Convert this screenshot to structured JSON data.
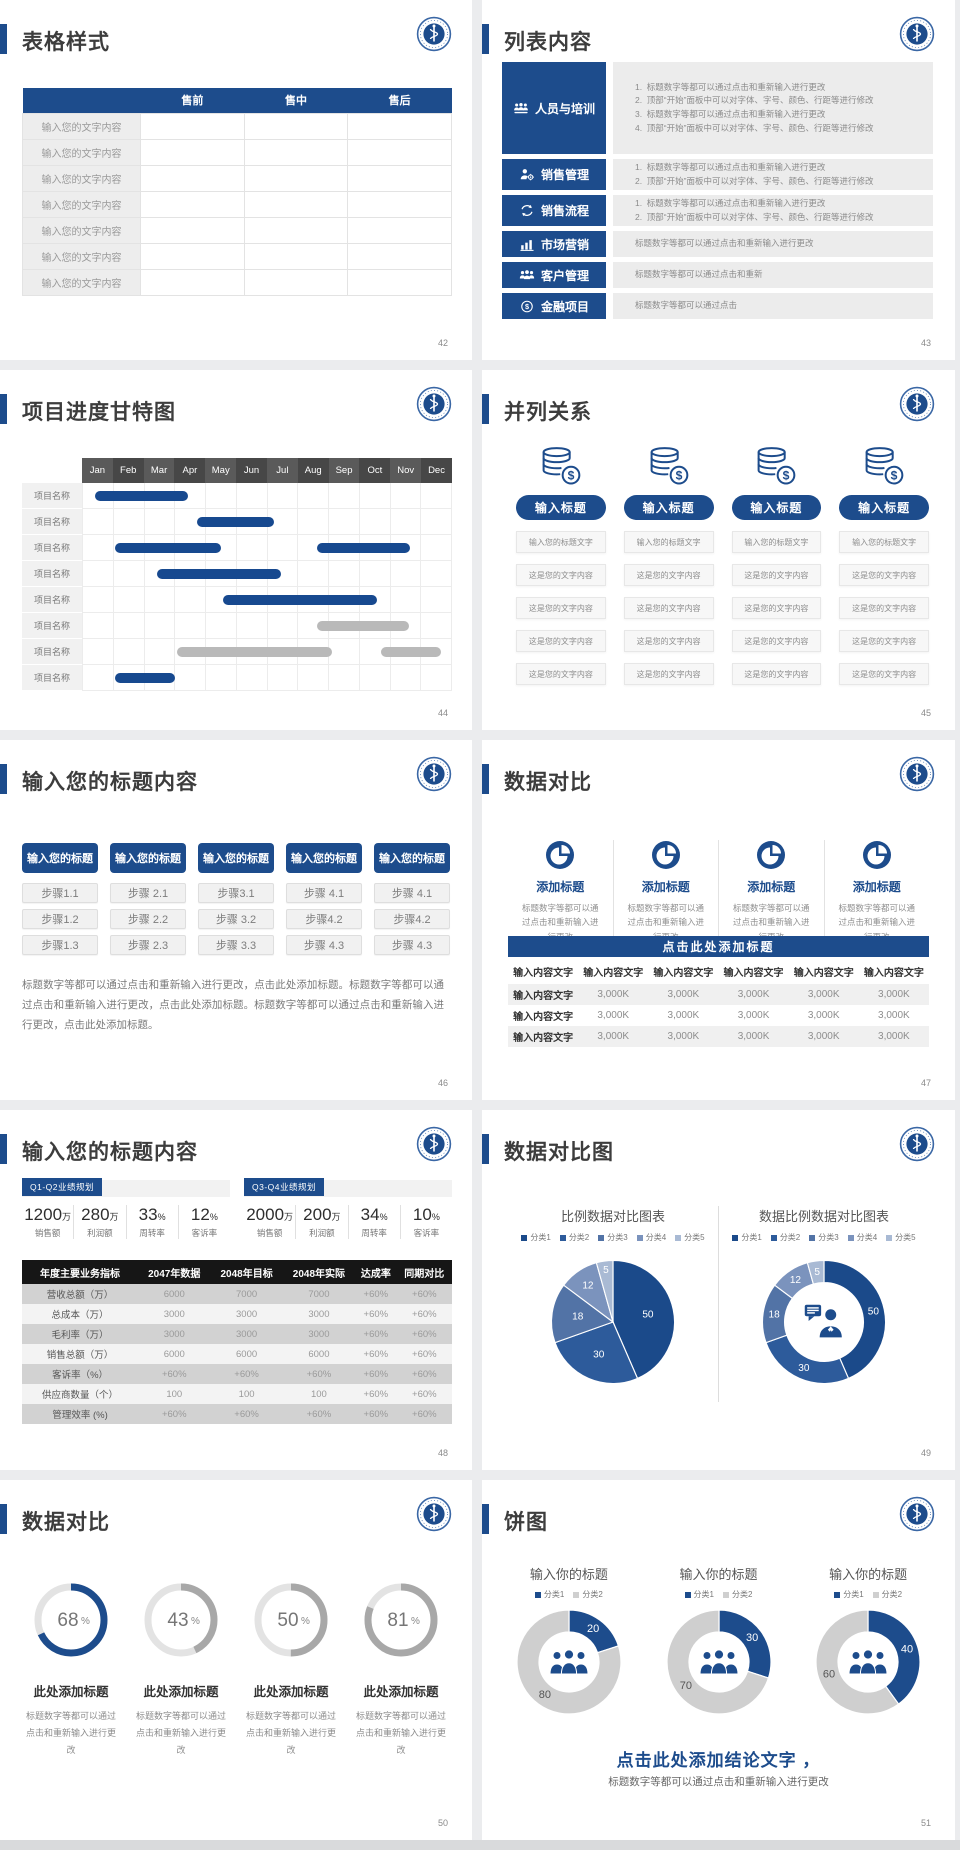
{
  "colors": {
    "primary": "#1d4c8c",
    "gantt_blue": "#17498f",
    "gantt_gray": "#b9b9b9",
    "pie_palette": [
      "#1b4a8a",
      "#2d5b9b",
      "#5273a6",
      "#7b93bd",
      "#a9bad4"
    ],
    "donut_gray": "#cfcfcf",
    "gauge_track": "#e3e3e3",
    "gauge_gray": "#a8a8a8"
  },
  "slides": {
    "s1": {
      "title": "表格样式",
      "page": "42",
      "table": {
        "headers": [
          "",
          "售前",
          "售中",
          "售后"
        ],
        "rows": [
          "输入您的文字内容",
          "输入您的文字内容",
          "输入您的文字内容",
          "输入您的文字内容",
          "输入您的文字内容",
          "输入您的文字内容",
          "输入您的文字内容"
        ]
      }
    },
    "s2": {
      "title": "列表内容",
      "page": "43",
      "items": [
        {
          "icon": "team-icon",
          "label": "人员与培训",
          "numbered": true,
          "lines": [
            "标题数字等都可以通过点击和重新输入进行更改",
            "顶部“开始”面板中可以对字体、字号、颜色、行距等进行修改",
            "标题数字等都可以通过点击和重新输入进行更改",
            "顶部“开始”面板中可以对字体、字号、颜色、行距等进行修改"
          ]
        },
        {
          "icon": "sales-manage-icon",
          "label": "销售管理",
          "numbered": true,
          "lines": [
            "标题数字等都可以通过点击和重新输入进行更改",
            "顶部“开始”面板中可以对字体、字号、颜色、行距等进行修改"
          ]
        },
        {
          "icon": "sales-flow-icon",
          "label": "销售流程",
          "numbered": true,
          "lines": [
            "标题数字等都可以通过点击和重新输入进行更改",
            "顶部“开始”面板中可以对字体、字号、颜色、行距等进行修改"
          ]
        },
        {
          "icon": "marketing-icon",
          "label": "市场营销",
          "numbered": false,
          "lines": [
            "标题数字等都可以通过点击和重新输入进行更改"
          ]
        },
        {
          "icon": "customer-icon",
          "label": "客户管理",
          "numbered": false,
          "lines": [
            "标题数字等都可以通过点击和重新"
          ]
        },
        {
          "icon": "finance-icon",
          "label": "金融项目",
          "numbered": false,
          "lines": [
            "标题数字等都可以通过点击"
          ]
        }
      ]
    },
    "s3": {
      "title": "项目进度甘特图",
      "page": "44",
      "gantt": {
        "months": [
          "Jan",
          "Feb",
          "Mar",
          "Apr",
          "May",
          "Jun",
          "Jul",
          "Aug",
          "Sep",
          "Oct",
          "Nov",
          "Dec"
        ],
        "row_label": "项目名称",
        "rows": 8,
        "bars": [
          {
            "row": 0,
            "start": 0.4,
            "end": 3.4,
            "color": "blue"
          },
          {
            "row": 1,
            "start": 3.7,
            "end": 6.2,
            "color": "blue"
          },
          {
            "row": 2,
            "start": 1.05,
            "end": 4.5,
            "color": "blue"
          },
          {
            "row": 2,
            "start": 7.6,
            "end": 10.65,
            "color": "blue"
          },
          {
            "row": 3,
            "start": 2.4,
            "end": 6.45,
            "color": "blue"
          },
          {
            "row": 4,
            "start": 4.55,
            "end": 9.55,
            "color": "blue"
          },
          {
            "row": 5,
            "start": 7.6,
            "end": 10.6,
            "color": "gray"
          },
          {
            "row": 6,
            "start": 3.05,
            "end": 8.1,
            "color": "gray"
          },
          {
            "row": 6,
            "start": 9.7,
            "end": 11.65,
            "color": "gray"
          },
          {
            "row": 7,
            "start": 1.05,
            "end": 3.0,
            "color": "blue"
          }
        ]
      }
    },
    "s4": {
      "title": "并列关系",
      "page": "45",
      "columns": [
        {
          "pill": "输入标题",
          "boxes": [
            "输入您的标题文字",
            "这是您的文字内容",
            "这是您的文字内容",
            "这是您的文字内容",
            "这是您的文字内容"
          ]
        },
        {
          "pill": "输入标题",
          "boxes": [
            "输入您的标题文字",
            "这是您的文字内容",
            "这是您的文字内容",
            "这是您的文字内容",
            "这是您的文字内容"
          ]
        },
        {
          "pill": "输入标题",
          "boxes": [
            "输入您的标题文字",
            "这是您的文字内容",
            "这是您的文字内容",
            "这是您的文字内容",
            "这是您的文字内容"
          ]
        },
        {
          "pill": "输入标题",
          "boxes": [
            "输入您的标题文字",
            "这是您的文字内容",
            "这是您的文字内容",
            "这是您的文字内容",
            "这是您的文字内容"
          ]
        }
      ]
    },
    "s5": {
      "title": "输入您的标题内容",
      "page": "46",
      "header_label": "输入您的标题",
      "step_columns": [
        [
          "步骤1.1",
          "步骤1.2",
          "步骤1.3"
        ],
        [
          "步骤 2.1",
          "步骤 2.2",
          "步骤 2.3"
        ],
        [
          "步骤3.1",
          "步骤 3.2",
          "步骤 3.3"
        ],
        [
          "步骤 4.1",
          "步骤4.2",
          "步骤 4.3"
        ],
        [
          "步骤 4.1",
          "步骤4.2",
          "步骤 4.3"
        ]
      ],
      "paragraph": "标题数字等都可以通过点击和重新输入进行更改，点击此处添加标题。标题数字等都可以通过点击和重新输入进行更改，点击此处添加标题。标题数字等都可以通过点击和重新输入进行更改，点击此处添加标题。"
    },
    "s6": {
      "title": "数据对比",
      "page": "47",
      "features": [
        {
          "heading": "添加标题",
          "text": "标题数字等都可以通过点击和重新输入进行更改"
        },
        {
          "heading": "添加标题",
          "text": "标题数字等都可以通过点击和重新输入进行更改"
        },
        {
          "heading": "添加标题",
          "text": "标题数字等都可以通过点击和重新输入进行更改"
        },
        {
          "heading": "添加标题",
          "text": "标题数字等都可以通过点击和重新输入进行更改"
        }
      ],
      "banner": "点击此处添加标题",
      "table": {
        "headers": [
          "输入内容文字",
          "输入内容文字",
          "输入内容文字",
          "输入内容文字",
          "输入内容文字",
          "输入内容文字"
        ],
        "rows": [
          [
            "输入内容文字",
            "3,000K",
            "3,000K",
            "3,000K",
            "3,000K",
            "3,000K"
          ],
          [
            "输入内容文字",
            "3,000K",
            "3,000K",
            "3,000K",
            "3,000K",
            "3,000K"
          ],
          [
            "输入内容文字",
            "3,000K",
            "3,000K",
            "3,000K",
            "3,000K",
            "3,000K"
          ]
        ]
      }
    },
    "s7": {
      "title": "输入您的标题内容",
      "page": "48",
      "groups": [
        {
          "badge": "Q1-Q2业绩规划",
          "stats": [
            {
              "value": "1200",
              "unit": "万",
              "label": "销售额"
            },
            {
              "value": "280",
              "unit": "万",
              "label": "利润额"
            },
            {
              "value": "33",
              "unit": "%",
              "label": "周转率"
            },
            {
              "value": "12",
              "unit": "%",
              "label": "客诉率"
            }
          ]
        },
        {
          "badge": "Q3-Q4业绩规划",
          "stats": [
            {
              "value": "2000",
              "unit": "万",
              "label": "销售额"
            },
            {
              "value": "200",
              "unit": "万",
              "label": "利润额"
            },
            {
              "value": "34",
              "unit": "%",
              "label": "周转率"
            },
            {
              "value": "10",
              "unit": "%",
              "label": "客诉率"
            }
          ]
        }
      ],
      "table": {
        "headers": [
          "年度主要业务指标",
          "2047年数据",
          "2048年目标",
          "2048年实际",
          "达成率",
          "同期对比"
        ],
        "rows": [
          [
            "营收总额（万）",
            "6000",
            "7000",
            "7000",
            "+60%",
            "+60%"
          ],
          [
            "总成本（万）",
            "3000",
            "3000",
            "3000",
            "+60%",
            "+60%"
          ],
          [
            "毛利率（万）",
            "3000",
            "3000",
            "3000",
            "+60%",
            "+60%"
          ],
          [
            "销售总额（万）",
            "6000",
            "6000",
            "6000",
            "+60%",
            "+60%"
          ],
          [
            "客诉率（%）",
            "+60%",
            "+60%",
            "+60%",
            "+60%",
            "+60%"
          ],
          [
            "供应商数量（个）",
            "100",
            "100",
            "100",
            "+60%",
            "+60%"
          ],
          [
            "管理效率 (%)",
            "+60%",
            "+60%",
            "+60%",
            "+60%",
            "+60%"
          ]
        ]
      }
    },
    "s8": {
      "title": "数据对比图",
      "page": "49",
      "chart_data": [
        {
          "type": "pie",
          "title": "比例数据对比图表",
          "legend": [
            "分类1",
            "分类2",
            "分类3",
            "分类4",
            "分类5"
          ],
          "values": [
            50,
            30,
            18,
            12,
            5
          ]
        },
        {
          "type": "donut",
          "title": "数据比例数据对比图表",
          "legend": [
            "分类1",
            "分类2",
            "分类3",
            "分类4",
            "分类5"
          ],
          "values": [
            50,
            30,
            18,
            12,
            5
          ]
        }
      ]
    },
    "s9": {
      "title": "数据对比",
      "page": "50",
      "gauges": [
        {
          "percent": 68,
          "color": "#1d4c8c",
          "heading": "此处添加标题",
          "text": "标题数字等都可以通过点击和重新输入进行更改"
        },
        {
          "percent": 43,
          "color": "#a8a8a8",
          "heading": "此处添加标题",
          "text": "标题数字等都可以通过点击和重新输入进行更改"
        },
        {
          "percent": 50,
          "color": "#a8a8a8",
          "heading": "此处添加标题",
          "text": "标题数字等都可以通过点击和重新输入进行更改"
        },
        {
          "percent": 81,
          "color": "#a8a8a8",
          "heading": "此处添加标题",
          "text": "标题数字等都可以通过点击和重新输入进行更改"
        }
      ]
    },
    "s10": {
      "title": "饼图",
      "page": "51",
      "chart_data": [
        {
          "type": "donut",
          "title": "输入你的标题",
          "legend": [
            "分类1",
            "分类2"
          ],
          "values": [
            20,
            80
          ]
        },
        {
          "type": "donut",
          "title": "输入你的标题",
          "legend": [
            "分类1",
            "分类2"
          ],
          "values": [
            30,
            70
          ]
        },
        {
          "type": "donut",
          "title": "输入你的标题",
          "legend": [
            "分类1",
            "分类2"
          ],
          "values": [
            40,
            60
          ]
        }
      ],
      "conclusion_title": "点击此处添加结论文字 ，",
      "conclusion_text": "标题数字等都可以通过点击和重新输入进行更改"
    }
  }
}
